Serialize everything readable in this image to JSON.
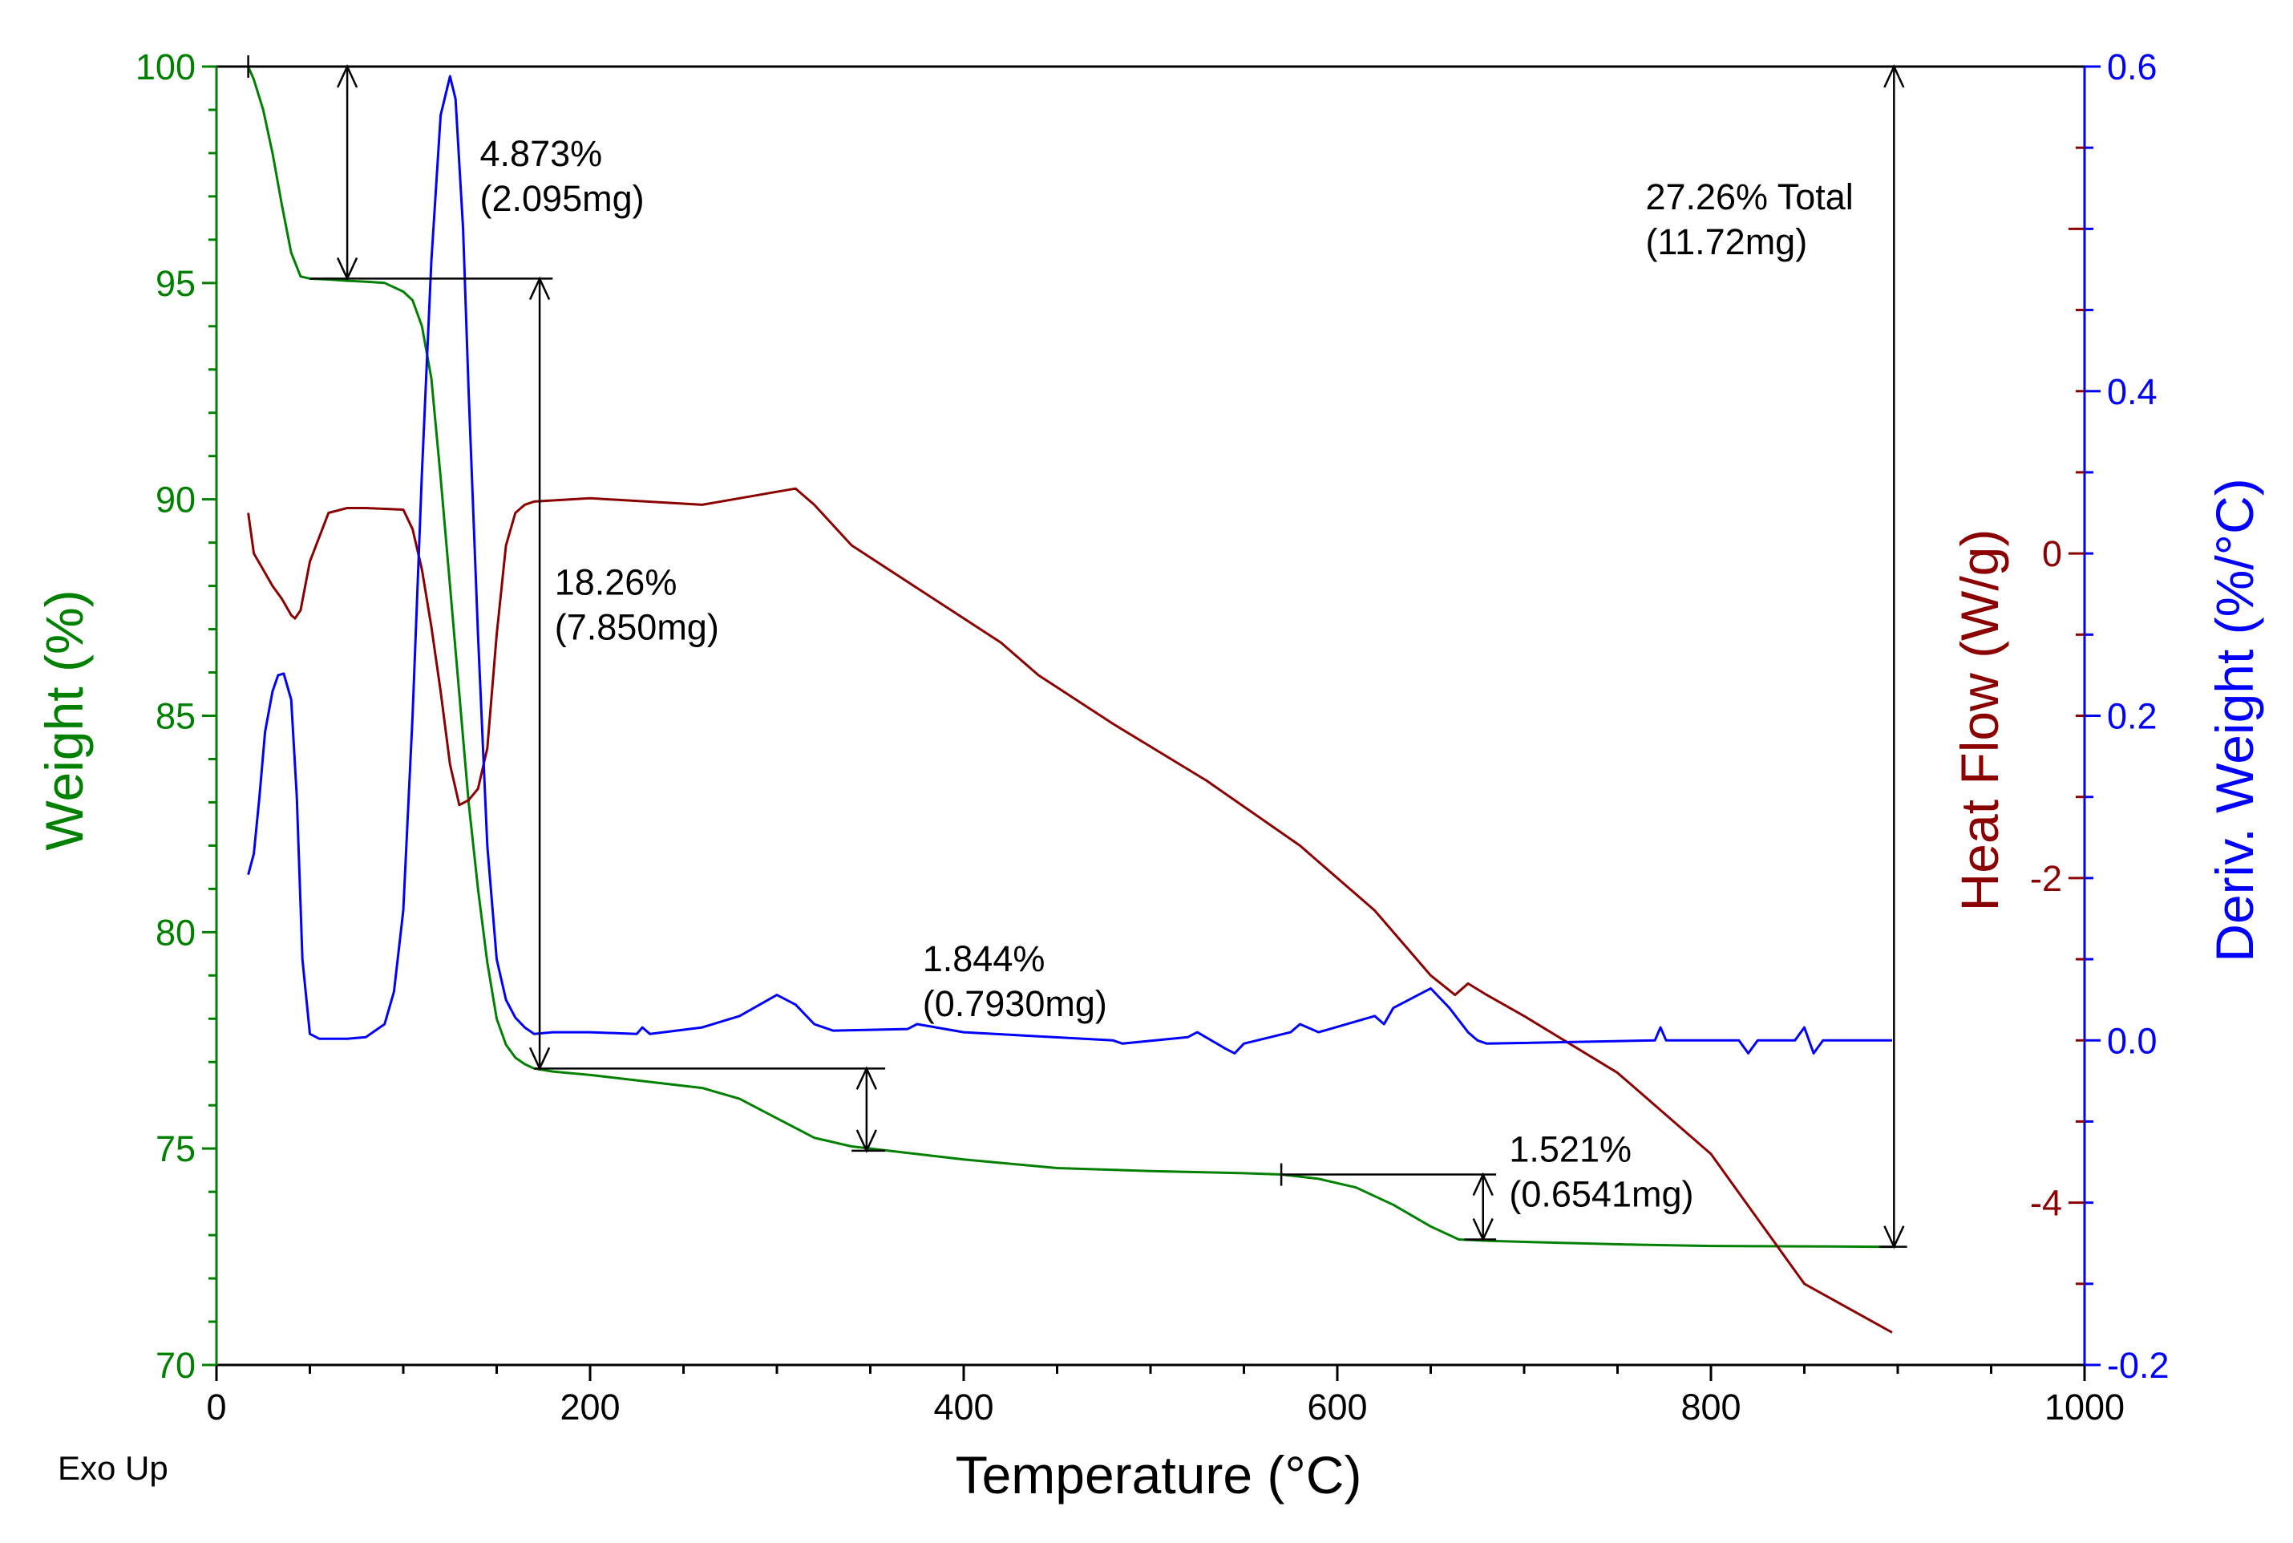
{
  "chart_data": {
    "type": "line",
    "xlabel": "Temperature (°C)",
    "xlim": [
      0,
      1000
    ],
    "xticks": [
      0,
      200,
      400,
      600,
      800,
      1000
    ],
    "corner_label": "Exo Up",
    "axes": {
      "weight": {
        "label": "Weight (%)",
        "lim": [
          70,
          100
        ],
        "ticks": [
          70,
          75,
          80,
          85,
          90,
          95,
          100
        ],
        "color": "#008000"
      },
      "heat_flow": {
        "label": "Heat Flow (W/g)",
        "lim": [
          -5,
          3
        ],
        "ticks": [
          -4,
          -2,
          0
        ],
        "color": "#8B0000"
      },
      "deriv": {
        "label": "Deriv. Weight (%/°C)",
        "lim": [
          -0.2,
          0.6
        ],
        "ticks": [
          -0.2,
          0.0,
          0.2,
          0.4,
          0.6
        ],
        "tick_labels": [
          "-0.2",
          "0.0",
          "0.2",
          "0.4",
          "0.6"
        ],
        "color": "#0000FF"
      }
    },
    "series": [
      {
        "name": "Weight",
        "axis": "weight",
        "color": "#008000",
        "x": [
          17,
          20,
          25,
          30,
          35,
          40,
          45,
          50,
          60,
          70,
          80,
          90,
          100,
          105,
          110,
          115,
          120,
          125,
          130,
          135,
          140,
          145,
          150,
          155,
          160,
          165,
          170,
          180,
          200,
          230,
          260,
          280,
          300,
          320,
          340,
          360,
          400,
          450,
          500,
          550,
          570,
          590,
          610,
          630,
          650,
          665,
          680,
          720,
          760,
          800,
          850,
          897
        ],
        "values": [
          100,
          99.7,
          99.0,
          98.0,
          96.8,
          95.7,
          95.15,
          95.1,
          95.08,
          95.05,
          95.03,
          95.0,
          94.8,
          94.6,
          94.0,
          92.8,
          90.5,
          88.0,
          85.5,
          83.0,
          81.0,
          79.3,
          78.0,
          77.4,
          77.1,
          76.95,
          76.85,
          76.78,
          76.7,
          76.55,
          76.4,
          76.15,
          75.7,
          75.25,
          75.05,
          74.95,
          74.75,
          74.55,
          74.48,
          74.43,
          74.4,
          74.3,
          74.1,
          73.7,
          73.2,
          72.9,
          72.87,
          72.82,
          72.78,
          72.75,
          72.74,
          72.73
        ]
      },
      {
        "name": "Heat Flow",
        "axis": "heat_flow",
        "color": "#8B0000",
        "x": [
          17,
          20,
          25,
          30,
          35,
          40,
          42,
          45,
          50,
          60,
          70,
          80,
          100,
          105,
          110,
          115,
          120,
          125,
          130,
          135,
          140,
          145,
          150,
          155,
          160,
          165,
          170,
          200,
          260,
          300,
          310,
          320,
          340,
          380,
          420,
          440,
          480,
          530,
          580,
          620,
          650,
          663,
          670,
          680,
          700,
          750,
          800,
          850,
          897
        ],
        "values": [
          0.25,
          0.0,
          -0.1,
          -0.2,
          -0.28,
          -0.38,
          -0.4,
          -0.35,
          -0.05,
          0.25,
          0.28,
          0.28,
          0.27,
          0.15,
          -0.1,
          -0.45,
          -0.85,
          -1.3,
          -1.55,
          -1.52,
          -1.45,
          -1.2,
          -0.5,
          0.05,
          0.25,
          0.3,
          0.32,
          0.34,
          0.3,
          0.38,
          0.4,
          0.3,
          0.05,
          -0.25,
          -0.55,
          -0.75,
          -1.05,
          -1.4,
          -1.8,
          -2.2,
          -2.6,
          -2.72,
          -2.65,
          -2.72,
          -2.85,
          -3.2,
          -3.7,
          -4.5,
          -4.8
        ]
      },
      {
        "name": "Deriv. Weight",
        "axis": "deriv",
        "color": "#0000FF",
        "x": [
          17,
          20,
          23,
          26,
          30,
          33,
          36,
          40,
          43,
          46,
          50,
          55,
          60,
          70,
          80,
          90,
          95,
          100,
          105,
          110,
          115,
          120,
          125,
          128,
          132,
          135,
          140,
          145,
          150,
          155,
          160,
          165,
          170,
          180,
          200,
          225,
          228,
          232,
          260,
          280,
          300,
          310,
          320,
          325,
          330,
          370,
          375,
          400,
          480,
          485,
          520,
          525,
          540,
          545,
          550,
          575,
          580,
          590,
          620,
          625,
          630,
          650,
          660,
          670,
          675,
          680,
          770,
          773,
          776,
          815,
          820,
          825,
          845,
          850,
          855,
          860,
          897
        ],
        "values": [
          0.102,
          0.115,
          0.15,
          0.19,
          0.215,
          0.225,
          0.226,
          0.21,
          0.15,
          0.05,
          0.004,
          0.001,
          0.001,
          0.001,
          0.002,
          0.01,
          0.03,
          0.08,
          0.2,
          0.35,
          0.48,
          0.57,
          0.594,
          0.58,
          0.5,
          0.4,
          0.25,
          0.12,
          0.05,
          0.025,
          0.014,
          0.008,
          0.004,
          0.005,
          0.005,
          0.004,
          0.008,
          0.004,
          0.008,
          0.015,
          0.028,
          0.022,
          0.01,
          0.008,
          0.006,
          0.007,
          0.01,
          0.005,
          0.0,
          -0.002,
          0.002,
          0.005,
          -0.005,
          -0.008,
          -0.002,
          0.005,
          0.01,
          0.005,
          0.015,
          0.01,
          0.02,
          0.032,
          0.02,
          0.005,
          0.0,
          -0.002,
          0.0,
          0.008,
          0.0,
          0.0,
          -0.008,
          0.0,
          0.0,
          0.008,
          -0.008,
          0.0,
          0.0
        ]
      }
    ],
    "annotations": [
      {
        "name": "step-1",
        "line1": "4.873%",
        "line2": "(2.095mg)",
        "x_at": 70,
        "w_from": 100,
        "w_to": 95.1,
        "label_x": 141,
        "label_w": 97.7
      },
      {
        "name": "step-2",
        "line1": "18.26%",
        "line2": "(7.850mg)",
        "x_at": 173,
        "w_from": 95.1,
        "w_to": 76.85,
        "label_x": 181,
        "label_w": 87.8
      },
      {
        "name": "step-3",
        "line1": "1.844%",
        "line2": "(0.7930mg)",
        "x_at": 348,
        "w_from": 76.85,
        "w_to": 74.95,
        "label_x": 378,
        "label_w": 79.1
      },
      {
        "name": "step-4",
        "line1": "1.521%",
        "line2": "(0.6541mg)",
        "x_at": 678,
        "w_from": 74.4,
        "w_to": 72.9,
        "label_x": 692,
        "label_w": 74.7
      },
      {
        "name": "total",
        "line1": "27.26% Total",
        "line2": "(11.72mg)",
        "x_at": 898,
        "w_from": 100,
        "w_to": 72.73,
        "label_x": 765,
        "label_w": 96.7
      }
    ]
  }
}
